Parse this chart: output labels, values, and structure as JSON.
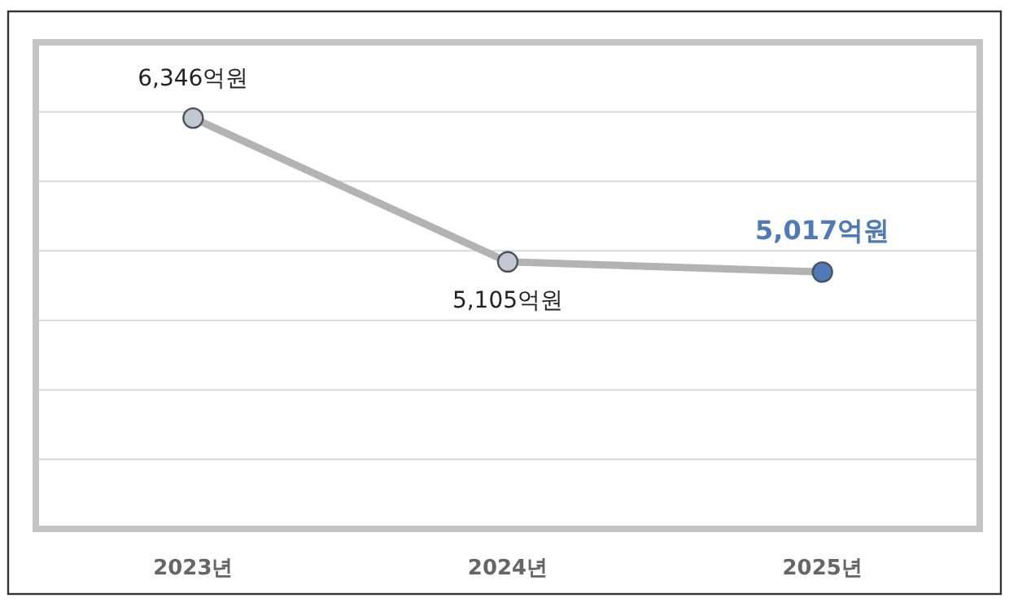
{
  "chart_data": {
    "type": "line",
    "categories": [
      "2023년",
      "2024년",
      "2025년"
    ],
    "series": [
      {
        "color": "#b3b3b3",
        "values": [
          6346,
          5105,
          5017
        ],
        "colors": [
          "#c3c7cf",
          "#c3c7cf",
          "#4f7ab8"
        ],
        "value_labels": [
          "6,346억원",
          "5,105억원",
          "5,017억원"
        ]
      }
    ],
    "ylim": [
      2800,
      7000
    ],
    "yticks": [
      {
        "value": 3400,
        "label": null
      },
      {
        "value": 4000,
        "label": null
      },
      {
        "value": 4600,
        "label": null
      },
      {
        "value": 5200,
        "label": null
      },
      {
        "value": 5800,
        "label": null
      },
      {
        "value": 6400,
        "label": null
      }
    ],
    "grid": "y",
    "marker": "circle",
    "line_style": "solid"
  }
}
